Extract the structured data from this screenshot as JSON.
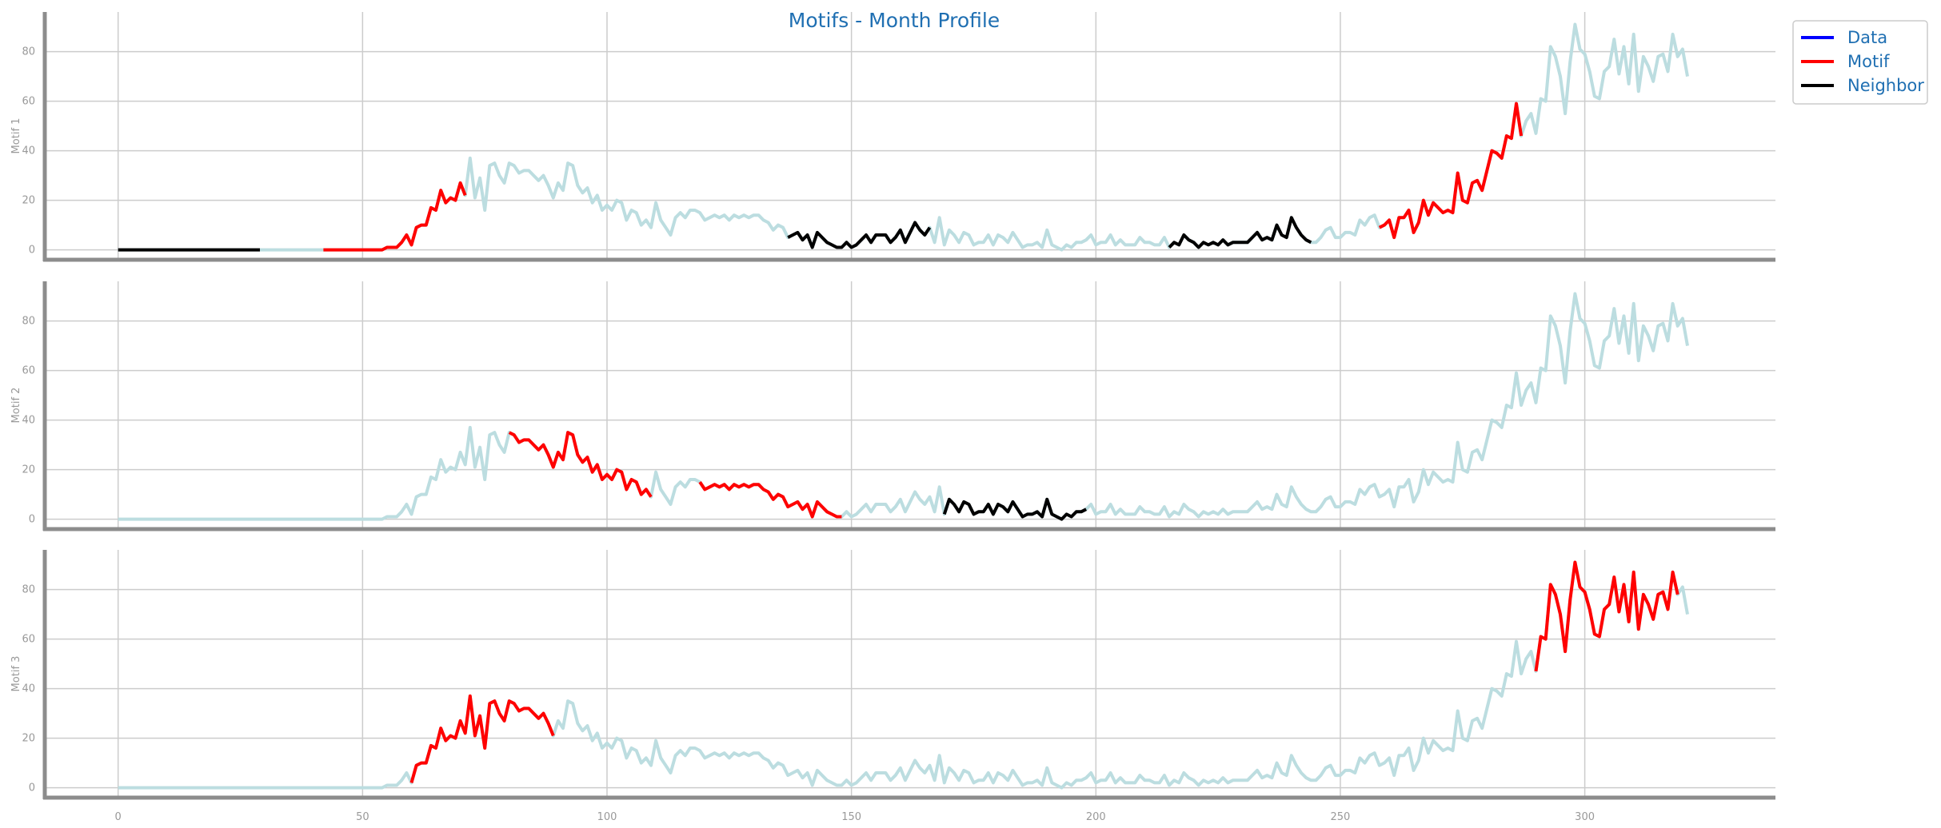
{
  "chart_data": {
    "type": "line",
    "title": "Motifs - Month Profile",
    "legend": {
      "placement": "outside-top-right",
      "entries": [
        {
          "name": "Data",
          "color": "#0000ff"
        },
        {
          "name": "Motif",
          "color": "#ff0000"
        },
        {
          "name": "Neighbor",
          "color": "#000000"
        }
      ]
    },
    "xlim": [
      -15,
      339
    ],
    "xticks": [
      0,
      50,
      100,
      150,
      200,
      250,
      300
    ],
    "ylim": [
      -4,
      96
    ],
    "yticks": [
      0,
      20,
      40,
      60,
      80
    ],
    "grid": true,
    "colors": {
      "data_line": "#bcdde0",
      "motif": "#ff0000",
      "neighbor": "#000000"
    },
    "x_start": 0,
    "base_series": [
      0,
      0,
      0,
      0,
      0,
      0,
      0,
      0,
      0,
      0,
      0,
      0,
      0,
      0,
      0,
      0,
      0,
      0,
      0,
      0,
      0,
      0,
      0,
      0,
      0,
      0,
      0,
      0,
      0,
      0,
      0,
      0,
      0,
      0,
      0,
      0,
      0,
      0,
      0,
      0,
      0,
      0,
      0,
      0,
      0,
      0,
      0,
      0,
      0,
      0,
      0,
      0,
      0,
      0,
      0,
      1,
      1,
      1,
      3,
      6,
      2,
      9,
      10,
      10,
      17,
      16,
      24,
      19,
      21,
      20,
      27,
      22,
      37,
      21,
      29,
      16,
      34,
      35,
      30,
      27,
      35,
      34,
      31,
      32,
      32,
      30,
      28,
      30,
      26,
      21,
      27,
      24,
      35,
      34,
      26,
      23,
      25,
      19,
      22,
      16,
      18,
      16,
      20,
      19,
      12,
      16,
      15,
      10,
      12,
      9,
      19,
      12,
      9,
      6,
      13,
      15,
      13,
      16,
      16,
      15,
      12,
      13,
      14,
      13,
      14,
      12,
      14,
      13,
      14,
      13,
      14,
      14,
      12,
      11,
      8,
      10,
      9,
      5,
      6,
      7,
      4,
      6,
      1,
      7,
      5,
      3,
      2,
      1,
      1,
      3,
      1,
      2,
      4,
      6,
      3,
      6,
      6,
      6,
      3,
      5,
      8,
      3,
      7,
      11,
      8,
      6,
      9,
      3,
      13,
      2,
      8,
      6,
      3,
      7,
      6,
      2,
      3,
      3,
      6,
      2,
      6,
      5,
      3,
      7,
      4,
      1,
      2,
      2,
      3,
      1,
      8,
      2,
      1,
      0,
      2,
      1,
      3,
      3,
      4,
      6,
      2,
      3,
      3,
      6,
      2,
      4,
      2,
      2,
      2,
      5,
      3,
      3,
      2,
      2,
      5,
      1,
      3,
      2,
      6,
      4,
      3,
      1,
      3,
      2,
      3,
      2,
      4,
      2,
      3,
      3,
      3,
      3,
      5,
      7,
      4,
      5,
      4,
      10,
      6,
      5,
      13,
      9,
      6,
      4,
      3,
      3,
      5,
      8,
      9,
      5,
      5,
      7,
      7,
      6,
      12,
      10,
      13,
      14,
      9,
      10,
      12,
      5,
      13,
      13,
      16,
      7,
      11,
      20,
      14,
      19,
      17,
      15,
      16,
      15,
      31,
      20,
      19,
      27,
      28,
      24,
      32,
      40,
      39,
      37,
      46,
      45,
      59,
      46,
      52,
      55,
      47,
      61,
      60,
      82,
      78,
      70,
      55,
      76,
      91,
      81,
      79,
      72,
      62,
      61,
      72,
      74,
      85,
      71,
      82,
      67,
      87,
      64,
      78,
      74,
      68,
      78,
      79,
      72,
      87,
      78,
      81,
      70
    ],
    "panels": [
      {
        "ylabel": "Motif 1",
        "motifs": [
          [
            42,
            72
          ],
          [
            258,
            288
          ]
        ],
        "neighbors": [
          [
            0,
            30
          ],
          [
            137,
            167
          ],
          [
            215,
            245
          ]
        ]
      },
      {
        "ylabel": "Motif 2",
        "motifs": [
          [
            80,
            110
          ],
          [
            119,
            149
          ]
        ],
        "neighbors": [
          [
            169,
            199
          ]
        ]
      },
      {
        "ylabel": "Motif 3",
        "motifs": [
          [
            60,
            90
          ],
          [
            290,
            320
          ]
        ],
        "neighbors": []
      }
    ]
  }
}
